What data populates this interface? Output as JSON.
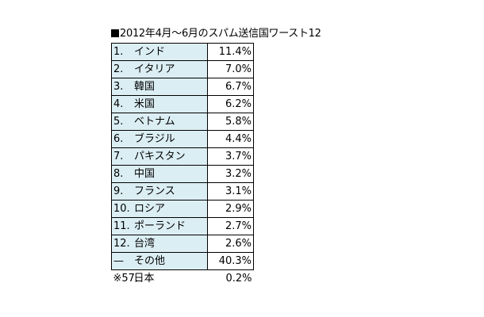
{
  "chart_data": {
    "type": "table",
    "title": "2012年4月～6月のスパム送信国ワースト12",
    "rows": [
      {
        "rank": "1.",
        "country": "インド",
        "value": "11.4%"
      },
      {
        "rank": "2.",
        "country": "イタリア",
        "value": "7.0%"
      },
      {
        "rank": "3.",
        "country": "韓国",
        "value": "6.7%"
      },
      {
        "rank": "4.",
        "country": "米国",
        "value": "6.2%"
      },
      {
        "rank": "5.",
        "country": "ベトナム",
        "value": "5.8%"
      },
      {
        "rank": "6.",
        "country": "ブラジル",
        "value": "4.4%"
      },
      {
        "rank": "7.",
        "country": "パキスタン",
        "value": "3.7%"
      },
      {
        "rank": "8.",
        "country": "中国",
        "value": "3.2%"
      },
      {
        "rank": "9.",
        "country": "フランス",
        "value": "3.1%"
      },
      {
        "rank": "10.",
        "country": "ロシア",
        "value": "2.9%"
      },
      {
        "rank": "11.",
        "country": "ポーランド",
        "value": "2.7%"
      },
      {
        "rank": "12.",
        "country": "台湾",
        "value": "2.6%"
      },
      {
        "rank": "—",
        "country": "その他",
        "value": "40.3%"
      }
    ],
    "note": {
      "rank": "※57.",
      "country": "日本",
      "value": "0.2%"
    },
    "colors": {
      "country_cell": "#dbeef4",
      "value_cell": "#ffffff",
      "border": "#000000"
    }
  }
}
